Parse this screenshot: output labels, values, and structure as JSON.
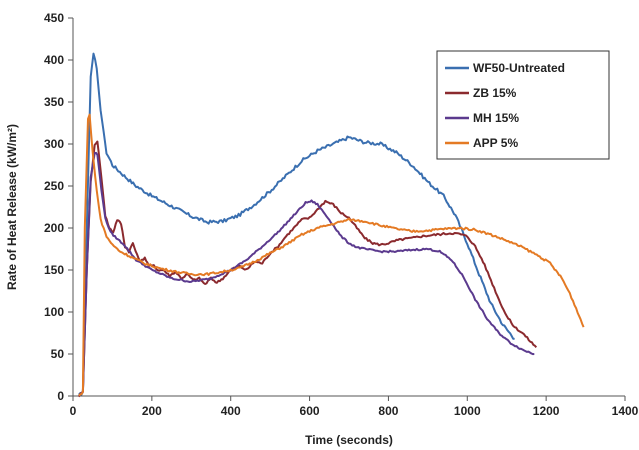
{
  "chart_data": {
    "type": "line",
    "xlabel": "Time (seconds)",
    "ylabel": "Rate of Heat Release (kW/m²)",
    "xlim": [
      0,
      1400
    ],
    "ylim": [
      0,
      450
    ],
    "xticks": [
      0,
      200,
      400,
      600,
      800,
      1000,
      1200,
      1400
    ],
    "yticks": [
      0,
      50,
      100,
      150,
      200,
      250,
      300,
      350,
      400,
      450
    ],
    "x_tick_labels": [
      "0",
      "200",
      "400",
      "600",
      "800",
      "1000",
      "1200",
      "1400"
    ],
    "y_tick_labels": [
      "0",
      "50",
      "100",
      "150",
      "200",
      "250",
      "300",
      "350",
      "400",
      "450"
    ],
    "grid": false,
    "legend_position": "top-right",
    "series": [
      {
        "name": "WF50-Untreated",
        "color": "#3a6fb0",
        "points": [
          [
            15,
            0
          ],
          [
            25,
            5
          ],
          [
            35,
            200
          ],
          [
            45,
            380
          ],
          [
            52,
            408
          ],
          [
            60,
            390
          ],
          [
            70,
            340
          ],
          [
            85,
            290
          ],
          [
            100,
            275
          ],
          [
            130,
            262
          ],
          [
            160,
            250
          ],
          [
            200,
            238
          ],
          [
            250,
            226
          ],
          [
            300,
            214
          ],
          [
            340,
            207
          ],
          [
            380,
            208
          ],
          [
            420,
            215
          ],
          [
            460,
            228
          ],
          [
            500,
            244
          ],
          [
            540,
            262
          ],
          [
            580,
            280
          ],
          [
            620,
            292
          ],
          [
            660,
            300
          ],
          [
            700,
            308
          ],
          [
            740,
            302
          ],
          [
            780,
            300
          ],
          [
            820,
            290
          ],
          [
            860,
            275
          ],
          [
            900,
            255
          ],
          [
            940,
            238
          ],
          [
            970,
            215
          ],
          [
            1000,
            182
          ],
          [
            1030,
            145
          ],
          [
            1060,
            110
          ],
          [
            1090,
            85
          ],
          [
            1120,
            68
          ]
        ]
      },
      {
        "name": "ZB 15%",
        "color": "#8b2a2e",
        "points": [
          [
            15,
            0
          ],
          [
            25,
            5
          ],
          [
            35,
            150
          ],
          [
            45,
            255
          ],
          [
            55,
            300
          ],
          [
            62,
            303
          ],
          [
            72,
            260
          ],
          [
            82,
            215
          ],
          [
            92,
            200
          ],
          [
            102,
            195
          ],
          [
            112,
            210
          ],
          [
            122,
            205
          ],
          [
            132,
            178
          ],
          [
            142,
            172
          ],
          [
            152,
            182
          ],
          [
            162,
            168
          ],
          [
            172,
            160
          ],
          [
            182,
            165
          ],
          [
            192,
            155
          ],
          [
            205,
            155
          ],
          [
            215,
            150
          ],
          [
            230,
            150
          ],
          [
            245,
            143
          ],
          [
            260,
            148
          ],
          [
            275,
            140
          ],
          [
            290,
            145
          ],
          [
            305,
            138
          ],
          [
            320,
            140
          ],
          [
            335,
            133
          ],
          [
            350,
            140
          ],
          [
            365,
            135
          ],
          [
            380,
            140
          ],
          [
            400,
            150
          ],
          [
            420,
            155
          ],
          [
            440,
            150
          ],
          [
            460,
            160
          ],
          [
            480,
            158
          ],
          [
            500,
            170
          ],
          [
            520,
            178
          ],
          [
            540,
            190
          ],
          [
            560,
            200
          ],
          [
            580,
            210
          ],
          [
            600,
            212
          ],
          [
            620,
            222
          ],
          [
            640,
            232
          ],
          [
            660,
            228
          ],
          [
            680,
            218
          ],
          [
            700,
            212
          ],
          [
            720,
            200
          ],
          [
            740,
            188
          ],
          [
            760,
            182
          ],
          [
            780,
            180
          ],
          [
            800,
            182
          ],
          [
            820,
            185
          ],
          [
            840,
            187
          ],
          [
            860,
            188
          ],
          [
            880,
            190
          ],
          [
            900,
            191
          ],
          [
            920,
            192
          ],
          [
            940,
            193
          ],
          [
            960,
            194
          ],
          [
            980,
            193
          ],
          [
            1000,
            190
          ],
          [
            1020,
            178
          ],
          [
            1040,
            160
          ],
          [
            1060,
            138
          ],
          [
            1080,
            115
          ],
          [
            1100,
            95
          ],
          [
            1120,
            82
          ],
          [
            1140,
            75
          ],
          [
            1160,
            65
          ],
          [
            1175,
            58
          ]
        ]
      },
      {
        "name": "MH 15%",
        "color": "#5b3a8e",
        "points": [
          [
            15,
            0
          ],
          [
            25,
            5
          ],
          [
            35,
            150
          ],
          [
            45,
            260
          ],
          [
            55,
            290
          ],
          [
            62,
            287
          ],
          [
            72,
            245
          ],
          [
            82,
            212
          ],
          [
            95,
            195
          ],
          [
            110,
            188
          ],
          [
            130,
            180
          ],
          [
            160,
            162
          ],
          [
            200,
            150
          ],
          [
            250,
            140
          ],
          [
            300,
            136
          ],
          [
            350,
            140
          ],
          [
            400,
            150
          ],
          [
            440,
            162
          ],
          [
            480,
            178
          ],
          [
            520,
            195
          ],
          [
            560,
            215
          ],
          [
            590,
            230
          ],
          [
            605,
            232
          ],
          [
            620,
            228
          ],
          [
            650,
            210
          ],
          [
            680,
            190
          ],
          [
            700,
            182
          ],
          [
            720,
            177
          ],
          [
            740,
            175
          ],
          [
            780,
            172
          ],
          [
            820,
            172
          ],
          [
            860,
            174
          ],
          [
            900,
            175
          ],
          [
            930,
            172
          ],
          [
            960,
            162
          ],
          [
            990,
            142
          ],
          [
            1020,
            115
          ],
          [
            1050,
            92
          ],
          [
            1080,
            75
          ],
          [
            1110,
            63
          ],
          [
            1140,
            55
          ],
          [
            1170,
            50
          ]
        ]
      },
      {
        "name": "APP 5%",
        "color": "#e47a24",
        "points": [
          [
            15,
            0
          ],
          [
            25,
            5
          ],
          [
            30,
            200
          ],
          [
            38,
            330
          ],
          [
            42,
            335
          ],
          [
            50,
            290
          ],
          [
            60,
            245
          ],
          [
            70,
            210
          ],
          [
            85,
            190
          ],
          [
            100,
            180
          ],
          [
            120,
            172
          ],
          [
            150,
            165
          ],
          [
            180,
            158
          ],
          [
            220,
            152
          ],
          [
            260,
            148
          ],
          [
            300,
            145
          ],
          [
            340,
            145
          ],
          [
            380,
            148
          ],
          [
            420,
            152
          ],
          [
            460,
            160
          ],
          [
            500,
            170
          ],
          [
            540,
            180
          ],
          [
            580,
            192
          ],
          [
            620,
            200
          ],
          [
            660,
            205
          ],
          [
            700,
            210
          ],
          [
            740,
            208
          ],
          [
            780,
            203
          ],
          [
            820,
            199
          ],
          [
            860,
            196
          ],
          [
            900,
            197
          ],
          [
            940,
            199
          ],
          [
            980,
            200
          ],
          [
            1020,
            198
          ],
          [
            1060,
            192
          ],
          [
            1100,
            185
          ],
          [
            1140,
            177
          ],
          [
            1180,
            167
          ],
          [
            1210,
            158
          ],
          [
            1240,
            140
          ],
          [
            1260,
            122
          ],
          [
            1280,
            100
          ],
          [
            1295,
            82
          ]
        ]
      }
    ]
  }
}
